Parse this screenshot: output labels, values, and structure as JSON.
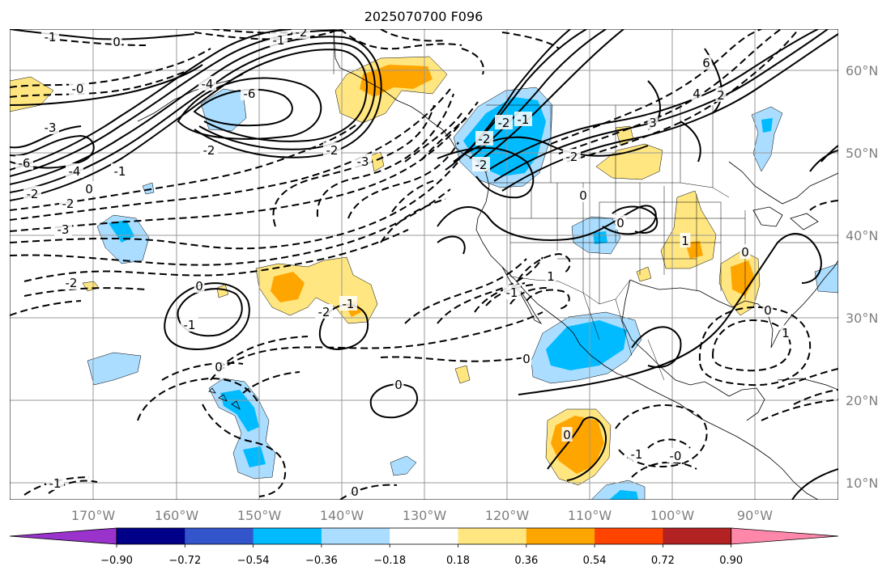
{
  "title": "2025070700 F096",
  "lon_labels": [
    "170°W",
    "160°W",
    "150°W",
    "140°W",
    "130°W",
    "120°W",
    "110°W",
    "100°W",
    "90°W"
  ],
  "lat_labels": [
    "60°N",
    "50°N",
    "40°N",
    "30°N",
    "20°N",
    "10°N"
  ],
  "colorbar": {
    "colors": [
      "#9933cc",
      "#000088",
      "#3355cc",
      "#00bbff",
      "#aaddff",
      "#ffffff",
      "#ffe680",
      "#ffa500",
      "#ff4400",
      "#b22222",
      "#ff88aa"
    ],
    "tick_labels": [
      "−0.90",
      "−0.72",
      "−0.54",
      "−0.36",
      "−0.18",
      "0.18",
      "0.36",
      "0.54",
      "0.72",
      "0.90"
    ]
  },
  "contour_labels": [
    {
      "text": "-1"
    },
    {
      "text": "0"
    },
    {
      "text": "-1"
    },
    {
      "text": "-2"
    },
    {
      "text": "-0"
    },
    {
      "text": "-4"
    },
    {
      "text": "-6"
    },
    {
      "text": "-3"
    },
    {
      "text": "-2"
    },
    {
      "text": "-4"
    },
    {
      "text": "-6"
    },
    {
      "text": "-1"
    },
    {
      "text": "-2"
    },
    {
      "text": "0"
    },
    {
      "text": "-3"
    },
    {
      "text": "-2"
    },
    {
      "text": "-3"
    },
    {
      "text": "-2"
    },
    {
      "text": "-2"
    },
    {
      "text": "-2"
    },
    {
      "text": "-1"
    },
    {
      "text": "0"
    },
    {
      "text": "-2"
    },
    {
      "text": "-2"
    },
    {
      "text": "3"
    },
    {
      "text": "4"
    },
    {
      "text": "6"
    },
    {
      "text": "2"
    },
    {
      "text": "0"
    },
    {
      "text": "-1"
    },
    {
      "text": "-2"
    },
    {
      "text": "-1"
    },
    {
      "text": "-2"
    },
    {
      "text": "0"
    },
    {
      "text": "1"
    },
    {
      "text": "0"
    },
    {
      "text": "-1"
    },
    {
      "text": "0"
    },
    {
      "text": "-1"
    },
    {
      "text": "0"
    },
    {
      "text": "0"
    },
    {
      "text": "-1"
    },
    {
      "text": "-0"
    },
    {
      "text": "0"
    },
    {
      "text": "1"
    },
    {
      "text": "0"
    },
    {
      "text": "1"
    },
    {
      "text": "0"
    }
  ]
}
